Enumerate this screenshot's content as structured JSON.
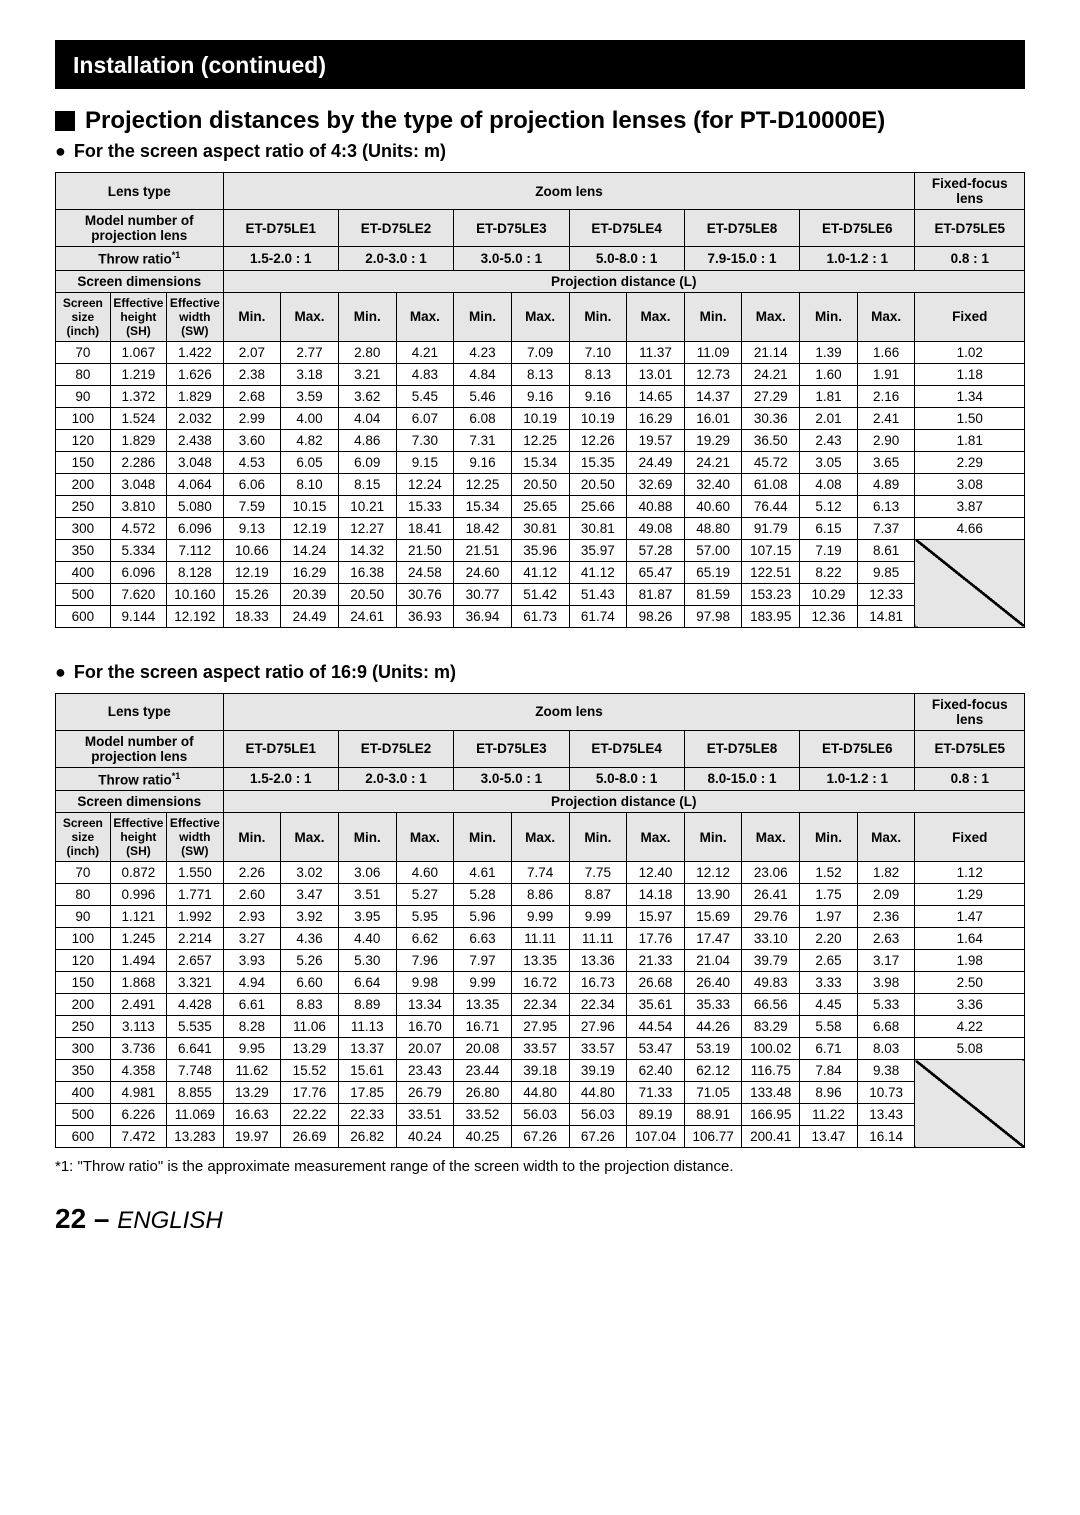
{
  "banner": "Installation (continued)",
  "section_title": "Projection distances by the type of projection lenses (for PT-D10000E)",
  "sub1": "For the screen aspect ratio of 4:3 (Units: m)",
  "sub2": "For the screen aspect ratio of 16:9 (Units: m)",
  "footnote": "*1: \"Throw ratio\" is the approximate measurement range of the screen width to the projection distance.",
  "page_num": "22",
  "page_dash": " – ",
  "page_lang": "ENGLISH",
  "labels": {
    "lens_type": "Lens type",
    "zoom_lens": "Zoom lens",
    "fixed_lens": "Fixed-focus lens",
    "model_no": "Model number of projection lens",
    "throw_ratio": "Throw ratio",
    "throw_sup": "*1",
    "screen_dim": "Screen dimensions",
    "proj_dist": "Projection distance (L)",
    "screen_size": "Screen size (inch)",
    "eff_h": "Effective height (SH)",
    "eff_w": "Effective width (SW)",
    "min": "Min.",
    "max": "Max.",
    "fixed": "Fixed"
  },
  "lenses": [
    "ET-D75LE1",
    "ET-D75LE2",
    "ET-D75LE3",
    "ET-D75LE4",
    "ET-D75LE8",
    "ET-D75LE6",
    "ET-D75LE5"
  ],
  "ratios_43": [
    "1.5-2.0 : 1",
    "2.0-3.0 : 1",
    "3.0-5.0 : 1",
    "5.0-8.0 : 1",
    "7.9-15.0 : 1",
    "1.0-1.2 : 1",
    "0.8 : 1"
  ],
  "ratios_169": [
    "1.5-2.0 : 1",
    "2.0-3.0 : 1",
    "3.0-5.0 : 1",
    "5.0-8.0 : 1",
    "8.0-15.0 : 1",
    "1.0-1.2 : 1",
    "0.8 : 1"
  ],
  "rows_43": [
    [
      "70",
      "1.067",
      "1.422",
      "2.07",
      "2.77",
      "2.80",
      "4.21",
      "4.23",
      "7.09",
      "7.10",
      "11.37",
      "11.09",
      "21.14",
      "1.39",
      "1.66",
      "1.02"
    ],
    [
      "80",
      "1.219",
      "1.626",
      "2.38",
      "3.18",
      "3.21",
      "4.83",
      "4.84",
      "8.13",
      "8.13",
      "13.01",
      "12.73",
      "24.21",
      "1.60",
      "1.91",
      "1.18"
    ],
    [
      "90",
      "1.372",
      "1.829",
      "2.68",
      "3.59",
      "3.62",
      "5.45",
      "5.46",
      "9.16",
      "9.16",
      "14.65",
      "14.37",
      "27.29",
      "1.81",
      "2.16",
      "1.34"
    ],
    [
      "100",
      "1.524",
      "2.032",
      "2.99",
      "4.00",
      "4.04",
      "6.07",
      "6.08",
      "10.19",
      "10.19",
      "16.29",
      "16.01",
      "30.36",
      "2.01",
      "2.41",
      "1.50"
    ],
    [
      "120",
      "1.829",
      "2.438",
      "3.60",
      "4.82",
      "4.86",
      "7.30",
      "7.31",
      "12.25",
      "12.26",
      "19.57",
      "19.29",
      "36.50",
      "2.43",
      "2.90",
      "1.81"
    ],
    [
      "150",
      "2.286",
      "3.048",
      "4.53",
      "6.05",
      "6.09",
      "9.15",
      "9.16",
      "15.34",
      "15.35",
      "24.49",
      "24.21",
      "45.72",
      "3.05",
      "3.65",
      "2.29"
    ],
    [
      "200",
      "3.048",
      "4.064",
      "6.06",
      "8.10",
      "8.15",
      "12.24",
      "12.25",
      "20.50",
      "20.50",
      "32.69",
      "32.40",
      "61.08",
      "4.08",
      "4.89",
      "3.08"
    ],
    [
      "250",
      "3.810",
      "5.080",
      "7.59",
      "10.15",
      "10.21",
      "15.33",
      "15.34",
      "25.65",
      "25.66",
      "40.88",
      "40.60",
      "76.44",
      "5.12",
      "6.13",
      "3.87"
    ],
    [
      "300",
      "4.572",
      "6.096",
      "9.13",
      "12.19",
      "12.27",
      "18.41",
      "18.42",
      "30.81",
      "30.81",
      "49.08",
      "48.80",
      "91.79",
      "6.15",
      "7.37",
      "4.66"
    ],
    [
      "350",
      "5.334",
      "7.112",
      "10.66",
      "14.24",
      "14.32",
      "21.50",
      "21.51",
      "35.96",
      "35.97",
      "57.28",
      "57.00",
      "107.15",
      "7.19",
      "8.61",
      ""
    ],
    [
      "400",
      "6.096",
      "8.128",
      "12.19",
      "16.29",
      "16.38",
      "24.58",
      "24.60",
      "41.12",
      "41.12",
      "65.47",
      "65.19",
      "122.51",
      "8.22",
      "9.85",
      ""
    ],
    [
      "500",
      "7.620",
      "10.160",
      "15.26",
      "20.39",
      "20.50",
      "30.76",
      "30.77",
      "51.42",
      "51.43",
      "81.87",
      "81.59",
      "153.23",
      "10.29",
      "12.33",
      ""
    ],
    [
      "600",
      "9.144",
      "12.192",
      "18.33",
      "24.49",
      "24.61",
      "36.93",
      "36.94",
      "61.73",
      "61.74",
      "98.26",
      "97.98",
      "183.95",
      "12.36",
      "14.81",
      ""
    ]
  ],
  "rows_169": [
    [
      "70",
      "0.872",
      "1.550",
      "2.26",
      "3.02",
      "3.06",
      "4.60",
      "4.61",
      "7.74",
      "7.75",
      "12.40",
      "12.12",
      "23.06",
      "1.52",
      "1.82",
      "1.12"
    ],
    [
      "80",
      "0.996",
      "1.771",
      "2.60",
      "3.47",
      "3.51",
      "5.27",
      "5.28",
      "8.86",
      "8.87",
      "14.18",
      "13.90",
      "26.41",
      "1.75",
      "2.09",
      "1.29"
    ],
    [
      "90",
      "1.121",
      "1.992",
      "2.93",
      "3.92",
      "3.95",
      "5.95",
      "5.96",
      "9.99",
      "9.99",
      "15.97",
      "15.69",
      "29.76",
      "1.97",
      "2.36",
      "1.47"
    ],
    [
      "100",
      "1.245",
      "2.214",
      "3.27",
      "4.36",
      "4.40",
      "6.62",
      "6.63",
      "11.11",
      "11.11",
      "17.76",
      "17.47",
      "33.10",
      "2.20",
      "2.63",
      "1.64"
    ],
    [
      "120",
      "1.494",
      "2.657",
      "3.93",
      "5.26",
      "5.30",
      "7.96",
      "7.97",
      "13.35",
      "13.36",
      "21.33",
      "21.04",
      "39.79",
      "2.65",
      "3.17",
      "1.98"
    ],
    [
      "150",
      "1.868",
      "3.321",
      "4.94",
      "6.60",
      "6.64",
      "9.98",
      "9.99",
      "16.72",
      "16.73",
      "26.68",
      "26.40",
      "49.83",
      "3.33",
      "3.98",
      "2.50"
    ],
    [
      "200",
      "2.491",
      "4.428",
      "6.61",
      "8.83",
      "8.89",
      "13.34",
      "13.35",
      "22.34",
      "22.34",
      "35.61",
      "35.33",
      "66.56",
      "4.45",
      "5.33",
      "3.36"
    ],
    [
      "250",
      "3.113",
      "5.535",
      "8.28",
      "11.06",
      "11.13",
      "16.70",
      "16.71",
      "27.95",
      "27.96",
      "44.54",
      "44.26",
      "83.29",
      "5.58",
      "6.68",
      "4.22"
    ],
    [
      "300",
      "3.736",
      "6.641",
      "9.95",
      "13.29",
      "13.37",
      "20.07",
      "20.08",
      "33.57",
      "33.57",
      "53.47",
      "53.19",
      "100.02",
      "6.71",
      "8.03",
      "5.08"
    ],
    [
      "350",
      "4.358",
      "7.748",
      "11.62",
      "15.52",
      "15.61",
      "23.43",
      "23.44",
      "39.18",
      "39.19",
      "62.40",
      "62.12",
      "116.75",
      "7.84",
      "9.38",
      ""
    ],
    [
      "400",
      "4.981",
      "8.855",
      "13.29",
      "17.76",
      "17.85",
      "26.79",
      "26.80",
      "44.80",
      "44.80",
      "71.33",
      "71.05",
      "133.48",
      "8.96",
      "10.73",
      ""
    ],
    [
      "500",
      "6.226",
      "11.069",
      "16.63",
      "22.22",
      "22.33",
      "33.51",
      "33.52",
      "56.03",
      "56.03",
      "89.19",
      "88.91",
      "166.95",
      "11.22",
      "13.43",
      ""
    ],
    [
      "600",
      "7.472",
      "13.283",
      "19.97",
      "26.69",
      "26.82",
      "40.24",
      "40.25",
      "67.26",
      "67.26",
      "107.04",
      "106.77",
      "200.41",
      "13.47",
      "16.14",
      ""
    ]
  ]
}
